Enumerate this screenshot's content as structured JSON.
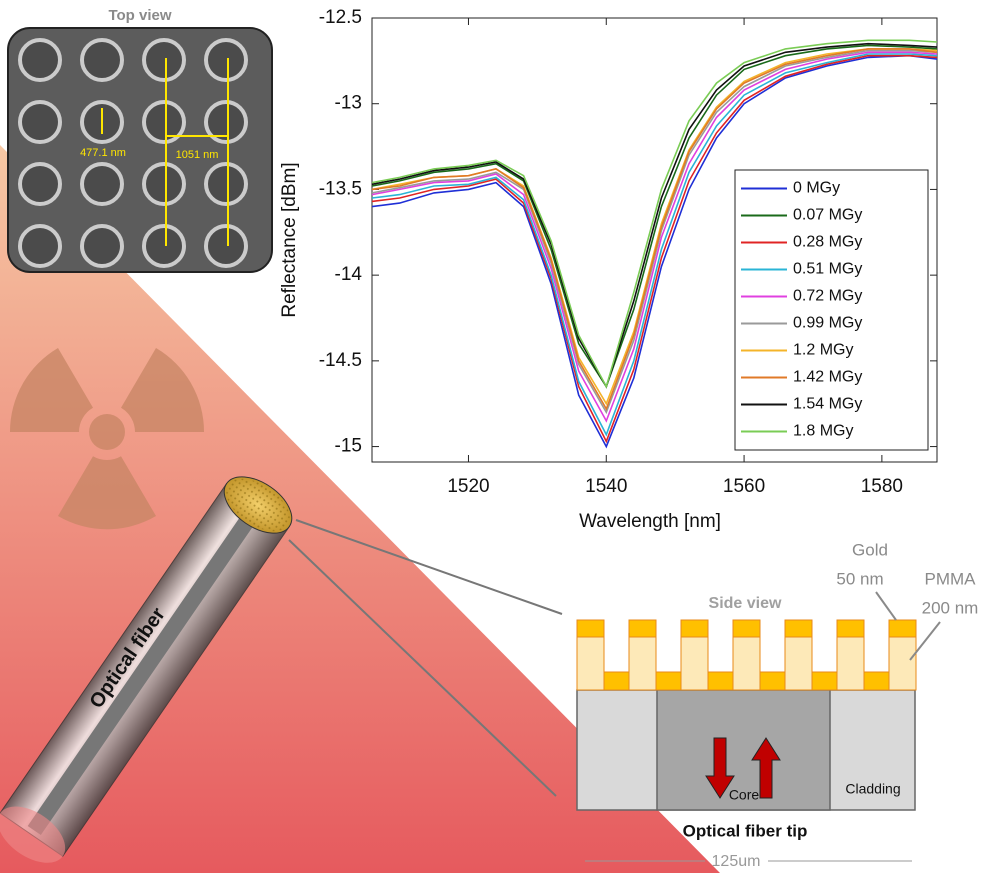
{
  "chart_data": {
    "type": "line",
    "xlabel": "Wavelength [nm]",
    "ylabel": "Reflectance [dBm]",
    "x": [
      1506,
      1510,
      1515,
      1520,
      1524,
      1528,
      1532,
      1536,
      1540,
      1544,
      1548,
      1552,
      1556,
      1560,
      1566,
      1572,
      1578,
      1584,
      1588
    ],
    "xlim": [
      1506,
      1588
    ],
    "xticks": [
      1520,
      1540,
      1560,
      1580
    ],
    "ylim": [
      -15.09,
      -12.5
    ],
    "yticks": [
      -12.5,
      -13,
      -13.5,
      -14,
      -14.5,
      -15
    ],
    "legend": "lower right",
    "series": [
      {
        "name": "0 MGy",
        "color": "#1f2fd6",
        "values": [
          -13.6,
          -13.58,
          -13.52,
          -13.5,
          -13.46,
          -13.6,
          -14.05,
          -14.7,
          -15.0,
          -14.6,
          -13.95,
          -13.5,
          -13.2,
          -13.0,
          -12.85,
          -12.78,
          -12.73,
          -12.72,
          -12.74
        ]
      },
      {
        "name": "0.07 MGy",
        "color": "#1a6a1a",
        "values": [
          -13.48,
          -13.45,
          -13.4,
          -13.38,
          -13.35,
          -13.45,
          -13.85,
          -14.4,
          -14.65,
          -14.2,
          -13.6,
          -13.2,
          -12.95,
          -12.8,
          -12.72,
          -12.68,
          -12.66,
          -12.67,
          -12.68
        ]
      },
      {
        "name": "0.28 MGy",
        "color": "#e02424",
        "values": [
          -13.57,
          -13.55,
          -13.5,
          -13.48,
          -13.44,
          -13.58,
          -14.02,
          -14.65,
          -14.97,
          -14.55,
          -13.9,
          -13.45,
          -13.17,
          -12.98,
          -12.84,
          -12.77,
          -12.72,
          -12.72,
          -12.73
        ]
      },
      {
        "name": "0.51 MGy",
        "color": "#2ab4d6",
        "values": [
          -13.55,
          -13.53,
          -13.48,
          -13.47,
          -13.43,
          -13.56,
          -14.0,
          -14.62,
          -14.93,
          -14.5,
          -13.85,
          -13.4,
          -13.13,
          -12.95,
          -12.82,
          -12.76,
          -12.71,
          -12.71,
          -12.72
        ]
      },
      {
        "name": "0.72 MGy",
        "color": "#e040e0",
        "values": [
          -13.53,
          -13.5,
          -13.46,
          -13.45,
          -13.41,
          -13.53,
          -13.96,
          -14.56,
          -14.85,
          -14.43,
          -13.78,
          -13.35,
          -13.08,
          -12.92,
          -12.8,
          -12.74,
          -12.7,
          -12.7,
          -12.71
        ]
      },
      {
        "name": "0.99 MGy",
        "color": "#9a9a9a",
        "values": [
          -13.52,
          -13.49,
          -13.45,
          -13.44,
          -13.4,
          -13.5,
          -13.93,
          -14.52,
          -14.8,
          -14.38,
          -13.74,
          -13.3,
          -13.05,
          -12.9,
          -12.78,
          -12.73,
          -12.69,
          -12.69,
          -12.7
        ]
      },
      {
        "name": "1.2 MGy",
        "color": "#f4b42a",
        "values": [
          -13.5,
          -13.47,
          -13.43,
          -13.42,
          -13.38,
          -13.48,
          -13.9,
          -14.48,
          -14.75,
          -14.33,
          -13.7,
          -13.27,
          -13.02,
          -12.87,
          -12.76,
          -12.71,
          -12.68,
          -12.68,
          -12.69
        ]
      },
      {
        "name": "1.42 MGy",
        "color": "#e07a28",
        "values": [
          -13.5,
          -13.48,
          -13.43,
          -13.42,
          -13.38,
          -13.49,
          -13.91,
          -14.5,
          -14.78,
          -14.35,
          -13.72,
          -13.28,
          -13.03,
          -12.88,
          -12.77,
          -12.72,
          -12.68,
          -12.68,
          -12.7
        ]
      },
      {
        "name": "1.54 MGy",
        "color": "#111111",
        "values": [
          -13.47,
          -13.44,
          -13.39,
          -13.37,
          -13.34,
          -13.44,
          -13.82,
          -14.37,
          -14.65,
          -14.15,
          -13.55,
          -13.15,
          -12.92,
          -12.78,
          -12.7,
          -12.67,
          -12.65,
          -12.66,
          -12.67
        ]
      },
      {
        "name": "1.8 MGy",
        "color": "#7acc55",
        "values": [
          -13.46,
          -13.43,
          -13.38,
          -13.36,
          -13.33,
          -13.42,
          -13.8,
          -14.35,
          -14.65,
          -14.1,
          -13.5,
          -13.1,
          -12.88,
          -12.76,
          -12.68,
          -12.65,
          -12.63,
          -12.63,
          -12.64
        ]
      }
    ]
  },
  "figure": {
    "top_view_title": "Top view",
    "diameter": "477.1 nm",
    "period": "1051 nm",
    "fiber_label": "Optical fiber",
    "gold_label": "Gold",
    "gold_thickness": "50 nm",
    "pmma_label": "PMMA",
    "pmma_thickness": "200 nm",
    "side_view_title": "Side view",
    "core_label": "Core",
    "cladding_label": "Cladding",
    "tip_title": "Optical fiber tip",
    "diameter_scale": "125um"
  }
}
